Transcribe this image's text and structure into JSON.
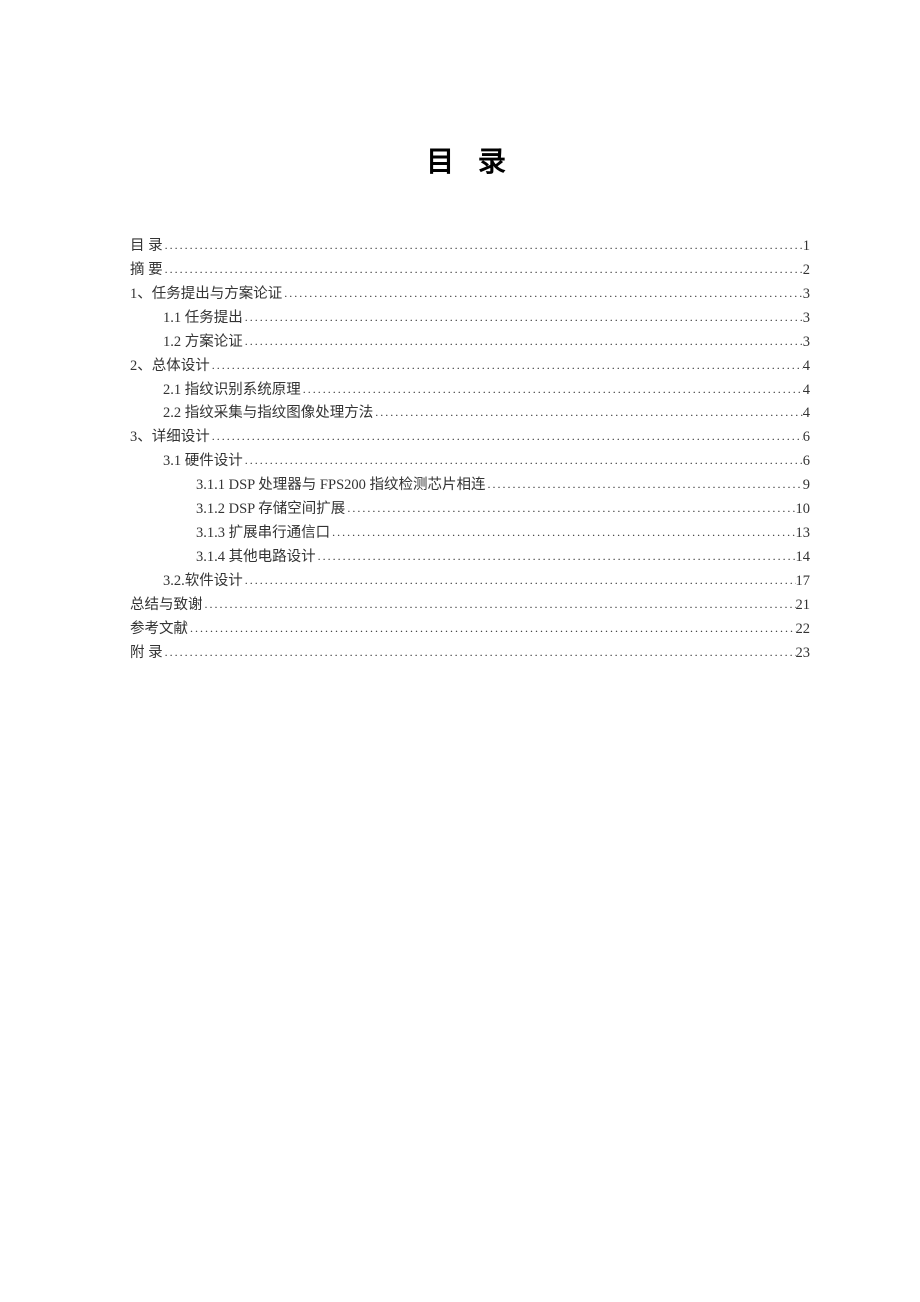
{
  "doc": {
    "title": "目 录",
    "background_color": "#ffffff",
    "text_color": "#333333",
    "title_fontsize": 28,
    "body_fontsize": 14.5,
    "line_height": 1.65
  },
  "toc": [
    {
      "label": "目 录",
      "page": "1",
      "level": 0
    },
    {
      "label": "摘 要",
      "page": "2",
      "level": 0
    },
    {
      "label": "1、任务提出与方案论证",
      "page": "3",
      "level": 0
    },
    {
      "label": "1.1 任务提出",
      "page": "3",
      "level": 1
    },
    {
      "label": "1.2 方案论证",
      "page": "3",
      "level": 1
    },
    {
      "label": "2、总体设计",
      "page": "4",
      "level": 0
    },
    {
      "label": "2.1 指纹识别系统原理",
      "page": "4",
      "level": 1
    },
    {
      "label": "2.2 指纹采集与指纹图像处理方法",
      "page": "4",
      "level": 1
    },
    {
      "label": "3、详细设计",
      "page": "6",
      "level": 0
    },
    {
      "label": "3.1 硬件设计",
      "page": "6",
      "level": 1
    },
    {
      "label": "3.1.1 DSP 处理器与 FPS200 指纹检测芯片相连",
      "page": "9",
      "level": 2
    },
    {
      "label": "3.1.2 DSP 存储空间扩展 ",
      "page": "10",
      "level": 2
    },
    {
      "label": "3.1.3 扩展串行通信口",
      "page": "13",
      "level": 2
    },
    {
      "label": "3.1.4 其他电路设计",
      "page": "14",
      "level": 2
    },
    {
      "label": "3.2.软件设计",
      "page": "17",
      "level": 1
    },
    {
      "label": "总结与致谢",
      "page": "21",
      "level": 0
    },
    {
      "label": "参考文献",
      "page": "22",
      "level": 0
    },
    {
      "label": "附 录",
      "page": "23",
      "level": 0
    }
  ]
}
